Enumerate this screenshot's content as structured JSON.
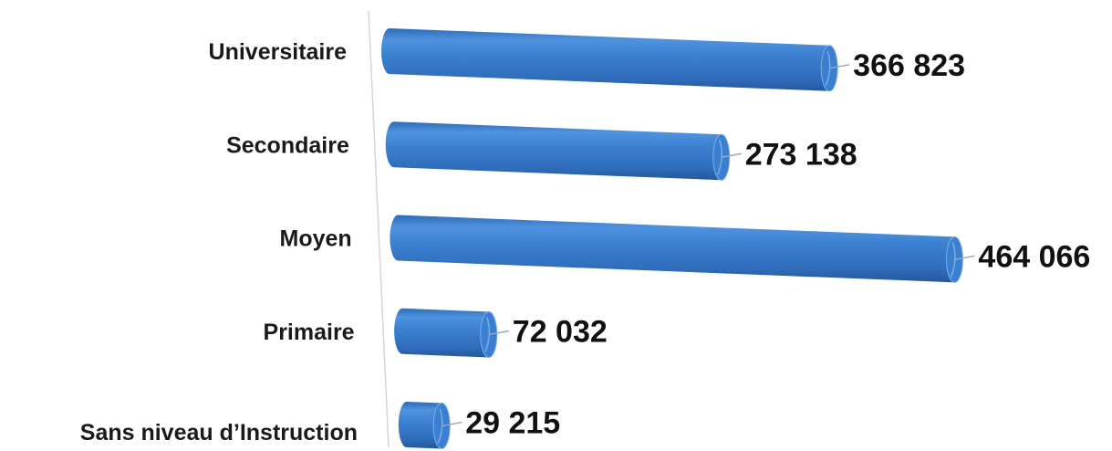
{
  "chart_data": {
    "type": "bar",
    "orientation": "horizontal",
    "style": "3d-cylinder",
    "categories": [
      "Universitaire",
      "Secondaire",
      "Moyen",
      "Primaire",
      "Sans niveau d’Instruction"
    ],
    "values": [
      366823,
      273138,
      464066,
      72032,
      29215
    ],
    "value_labels": [
      "366 823",
      "273 138",
      "464 066",
      "72 032",
      "29 215"
    ],
    "xlim": [
      0,
      464066
    ],
    "grid": false,
    "legend": "none",
    "colors": {
      "bar": "#3a7fd0",
      "bar_dark": "#24579a",
      "bar_light": "#79aee8",
      "axis": "#d0d0d0",
      "leader": "#9aa7b5"
    }
  }
}
